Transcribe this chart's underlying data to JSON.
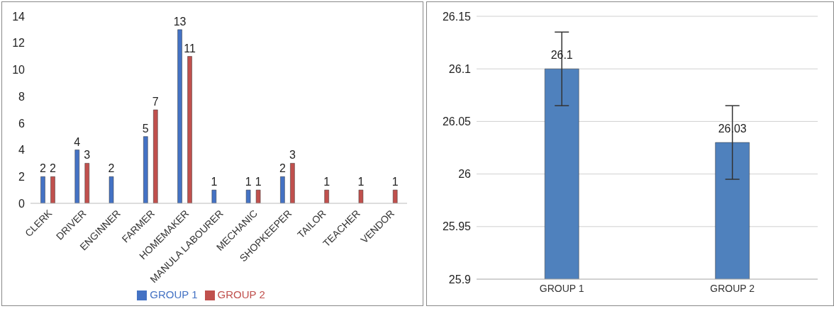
{
  "chart_data": [
    {
      "type": "bar",
      "categories": [
        "CLERK",
        "DRIVER",
        "ENGINNER",
        "FARMER",
        "HOMEMAKER",
        "MANULA LABOURER",
        "MECHANIC",
        "SHOPKEEPER",
        "TAILOR",
        "TEACHER",
        "VENDOR"
      ],
      "series": [
        {
          "name": "GROUP 1",
          "color": "#4472c4",
          "values": [
            2,
            4,
            2,
            5,
            13,
            1,
            1,
            2,
            null,
            null,
            null
          ]
        },
        {
          "name": "GROUP 2",
          "color": "#c0504d",
          "values": [
            2,
            3,
            null,
            7,
            11,
            null,
            1,
            3,
            1,
            1,
            1
          ]
        }
      ],
      "ylim": [
        0,
        14
      ],
      "yticks": [
        0,
        2,
        4,
        6,
        8,
        10,
        12,
        14
      ],
      "data_labels": true,
      "legend": "bottom",
      "grid": false
    },
    {
      "type": "bar",
      "categories": [
        "GROUP 1",
        "GROUP 2"
      ],
      "series": [
        {
          "color": "#4f81bd",
          "values": [
            26.1,
            26.03
          ],
          "errors": [
            0.035,
            0.035
          ]
        }
      ],
      "ylim": [
        25.9,
        26.15
      ],
      "yticks": [
        25.9,
        25.95,
        26,
        26.05,
        26.1,
        26.15
      ],
      "data_labels": true,
      "grid": "y"
    }
  ]
}
